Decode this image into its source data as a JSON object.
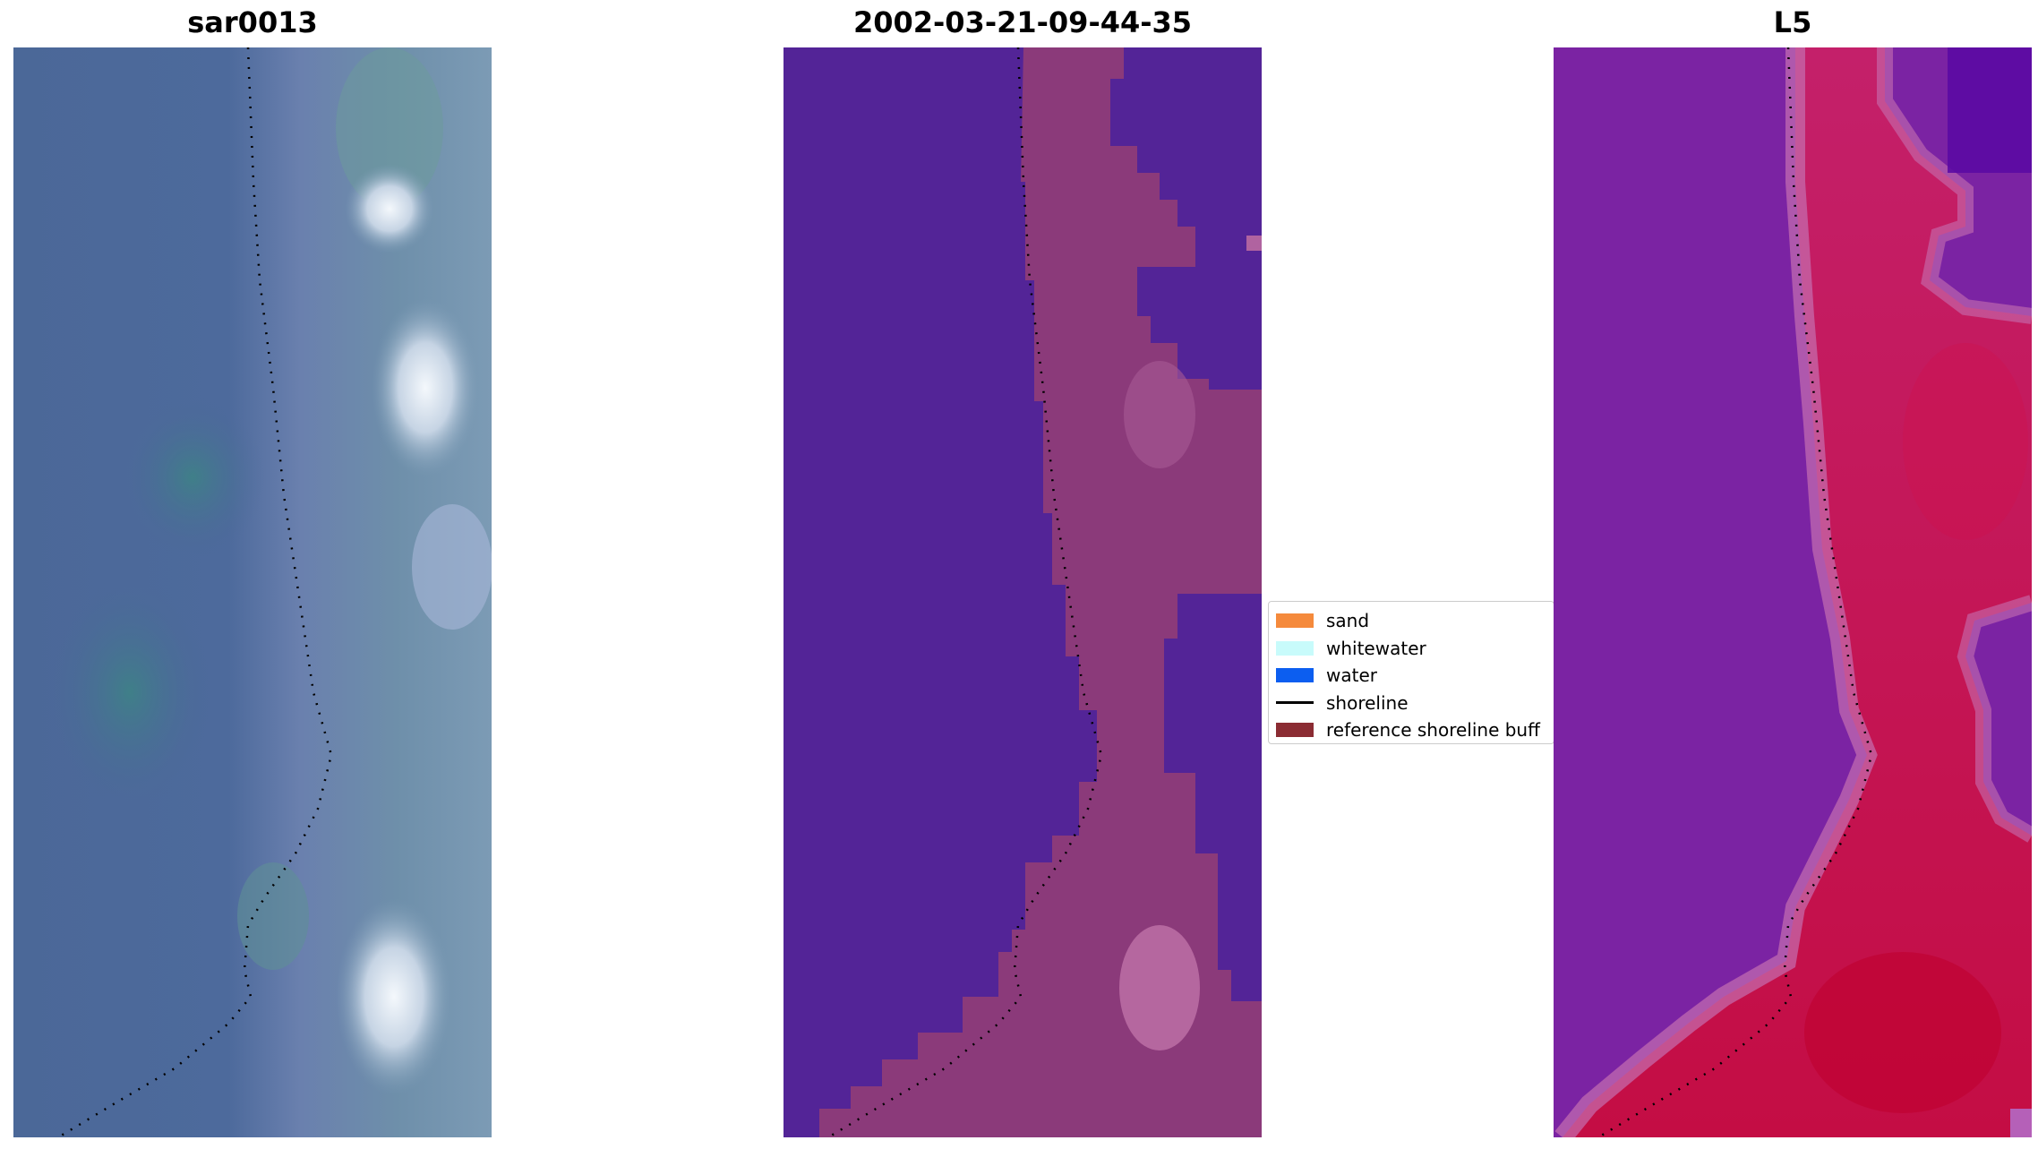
{
  "panels": [
    {
      "title": "sar0013"
    },
    {
      "title": "2002-03-21-09-44-35"
    },
    {
      "title": "L5"
    }
  ],
  "legend": {
    "items": [
      {
        "label": "sand",
        "color": "#f58a3c",
        "kind": "patch"
      },
      {
        "label": "whitewater",
        "color": "#c8fbfb",
        "kind": "patch"
      },
      {
        "label": "water",
        "color": "#0c5ef0",
        "kind": "patch"
      },
      {
        "label": "shoreline",
        "color": "#000000",
        "kind": "line"
      },
      {
        "label": "reference shoreline buff",
        "color": "#8b2c33",
        "kind": "patch"
      }
    ]
  },
  "colors": {
    "sar_water": "#4d6a9a",
    "sar_land": "#7a92b4",
    "classified_water": "#532497",
    "classified_buffer": "#8b3a7a",
    "index_low": "#7b23a3",
    "index_high": "#c40d44",
    "shoreline": "#000000"
  }
}
